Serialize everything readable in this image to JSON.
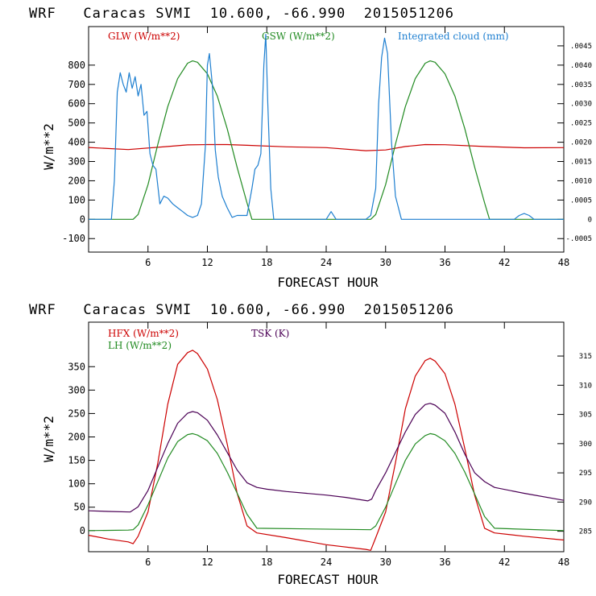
{
  "chart_data": [
    {
      "type": "line",
      "title": "WRF   Caracas SVMI  10.600, -66.990  2015051206",
      "xlabel": "FORECAST HOUR",
      "ylabel": "W/m**2",
      "xlim": [
        0,
        48
      ],
      "ylim": [
        -170,
        1000
      ],
      "xticks": [
        6,
        12,
        18,
        24,
        30,
        36,
        42,
        48
      ],
      "yticks": [
        -100,
        0,
        100,
        200,
        300,
        400,
        500,
        600,
        700,
        800
      ],
      "right_axis": {
        "label_series": "Integrated cloud (mm)",
        "ylim": [
          -0.00085,
          0.005
        ],
        "ticks": [
          -0.0005,
          0,
          0.0005,
          0.001,
          0.0015,
          0.002,
          0.0025,
          0.003,
          0.0035,
          0.004,
          0.0045
        ],
        "tick_labels": [
          "-.0005",
          "0",
          ".0005",
          ".0010",
          ".0015",
          ".0020",
          ".0025",
          ".0030",
          ".0035",
          ".0040",
          ".0045"
        ]
      },
      "series": [
        {
          "name": "GLW (W/m**2)",
          "color": "#cc0000",
          "axis": "left",
          "x": [
            0,
            4,
            8,
            10,
            12,
            14,
            16,
            20,
            24,
            28,
            30,
            32,
            34,
            36,
            40,
            44,
            48
          ],
          "y": [
            373,
            362,
            378,
            386,
            388,
            388,
            384,
            376,
            372,
            356,
            360,
            378,
            388,
            387,
            378,
            371,
            372
          ]
        },
        {
          "name": "GSW (W/m**2)",
          "color": "#228b22",
          "axis": "left",
          "x": [
            0,
            4.5,
            5,
            6,
            7,
            8,
            9,
            10,
            10.5,
            11,
            12,
            13,
            14,
            15,
            16,
            16.5,
            17,
            28.5,
            29,
            30,
            31,
            32,
            33,
            34,
            34.5,
            35,
            36,
            37,
            38,
            39,
            40,
            40.5,
            48
          ],
          "y": [
            0,
            0,
            25,
            180,
            390,
            585,
            730,
            810,
            822,
            815,
            755,
            640,
            470,
            270,
            85,
            0,
            0,
            0,
            25,
            180,
            390,
            585,
            730,
            810,
            822,
            815,
            755,
            640,
            470,
            270,
            85,
            0,
            0
          ]
        },
        {
          "name": "Integrated cloud (mm)",
          "color": "#1e7fd0",
          "axis": "right",
          "x": [
            0,
            2.3,
            2.6,
            2.9,
            3.2,
            3.5,
            3.8,
            4.1,
            4.4,
            4.7,
            5.0,
            5.3,
            5.6,
            5.9,
            6.2,
            6.5,
            6.8,
            7.2,
            7.6,
            8,
            8.5,
            9,
            9.5,
            10,
            10.5,
            11,
            11.4,
            11.8,
            12,
            12.2,
            12.5,
            12.8,
            13.1,
            13.5,
            14,
            14.5,
            15,
            15.5,
            16,
            16.5,
            16.8,
            17.1,
            17.4,
            17.7,
            17.9,
            18.1,
            18.4,
            18.7,
            19,
            24,
            24.5,
            25,
            26,
            28,
            28.5,
            29,
            29.3,
            29.6,
            29.9,
            30.2,
            30.6,
            31,
            31.6,
            33,
            39,
            43,
            43.5,
            44,
            44.5,
            45,
            48
          ],
          "y": [
            0,
            0,
            0.001,
            0.0033,
            0.0038,
            0.0035,
            0.0033,
            0.0038,
            0.0034,
            0.0037,
            0.0032,
            0.0035,
            0.0027,
            0.0028,
            0.0017,
            0.0014,
            0.0013,
            0.0004,
            0.0006,
            0.00055,
            0.0004,
            0.0003,
            0.0002,
            0.0001,
            5e-05,
            0.0001,
            0.0004,
            0.0019,
            0.004,
            0.0043,
            0.0035,
            0.0018,
            0.0011,
            0.0006,
            0.0003,
            5e-05,
            0.0001,
            0.0001,
            0.0001,
            0.0008,
            0.0013,
            0.0014,
            0.0017,
            0.004,
            0.0048,
            0.003,
            0.0008,
            0,
            0,
            0,
            0.0002,
            0,
            0,
            0,
            0.0001,
            0.0008,
            0.003,
            0.0042,
            0.0047,
            0.0043,
            0.002,
            0.0006,
            0,
            0,
            0,
            0,
            0.0001,
            0.00015,
            0.0001,
            0,
            0
          ]
        }
      ]
    },
    {
      "type": "line",
      "title": "WRF   Caracas SVMI  10.600, -66.990  2015051206",
      "xlabel": "FORECAST HOUR",
      "ylabel": "W/m**2",
      "xlim": [
        0,
        48
      ],
      "ylim": [
        -45,
        445
      ],
      "xticks": [
        6,
        12,
        18,
        24,
        30,
        36,
        42,
        48
      ],
      "yticks": [
        0,
        50,
        100,
        150,
        200,
        250,
        300,
        350
      ],
      "right_axis": {
        "label_series": "TSK (K)",
        "ylim": [
          281.5,
          320.8
        ],
        "ticks": [
          285,
          290,
          295,
          300,
          305,
          310,
          315
        ],
        "tick_labels": [
          "285",
          "290",
          "295",
          "300",
          "305",
          "310",
          "315"
        ]
      },
      "series": [
        {
          "name": "HFX (W/m**2)",
          "color": "#cc0000",
          "axis": "left",
          "x": [
            0,
            2,
            4,
            4.5,
            5,
            6,
            7,
            8,
            9,
            10,
            10.5,
            11,
            12,
            13,
            14,
            15,
            16,
            17,
            20,
            24,
            28,
            28.5,
            29,
            30,
            31,
            32,
            33,
            34,
            34.5,
            35,
            36,
            37,
            38,
            39,
            40,
            41,
            44,
            48
          ],
          "y": [
            -10,
            -18,
            -24,
            -28,
            -12,
            40,
            145,
            270,
            355,
            380,
            385,
            378,
            345,
            280,
            185,
            80,
            10,
            -5,
            -15,
            -30,
            -40,
            -42,
            -15,
            40,
            145,
            260,
            330,
            363,
            368,
            362,
            335,
            270,
            175,
            75,
            5,
            -5,
            -12,
            -20
          ]
        },
        {
          "name": "LH (W/m**2)",
          "color": "#228b22",
          "axis": "left",
          "x": [
            0,
            4,
            4.5,
            5,
            6,
            7,
            8,
            9,
            10,
            10.5,
            11,
            12,
            13,
            14,
            15,
            16,
            17,
            28.5,
            29,
            30,
            31,
            32,
            33,
            34,
            34.5,
            35,
            36,
            37,
            38,
            39,
            40,
            41,
            48
          ],
          "y": [
            0,
            1,
            2,
            12,
            55,
            105,
            155,
            190,
            205,
            207,
            204,
            192,
            165,
            125,
            80,
            35,
            5,
            2,
            10,
            50,
            100,
            150,
            185,
            203,
            207,
            205,
            192,
            165,
            125,
            78,
            30,
            5,
            0
          ]
        },
        {
          "name": "TSK (K)",
          "color": "#4b0055",
          "axis": "right",
          "x": [
            0,
            2,
            4.2,
            5,
            6,
            7,
            8,
            9,
            10,
            10.5,
            11,
            12,
            13,
            14,
            15,
            16,
            17,
            18,
            20,
            24,
            26,
            28.2,
            28.6,
            29,
            30,
            31,
            32,
            33,
            34,
            34.5,
            35,
            36,
            37,
            38,
            39,
            40,
            41,
            44,
            48
          ],
          "y": [
            288.5,
            288.4,
            288.3,
            289.2,
            292,
            296,
            300,
            303.5,
            305.2,
            305.5,
            305.3,
            304,
            301.5,
            298.5,
            295.5,
            293.3,
            292.5,
            292.2,
            291.8,
            291.2,
            290.8,
            290.2,
            290.5,
            292,
            295,
            298.5,
            302,
            305,
            306.7,
            306.9,
            306.6,
            305.2,
            302,
            298.2,
            295,
            293.5,
            292.5,
            291.5,
            290.3
          ]
        }
      ]
    }
  ]
}
